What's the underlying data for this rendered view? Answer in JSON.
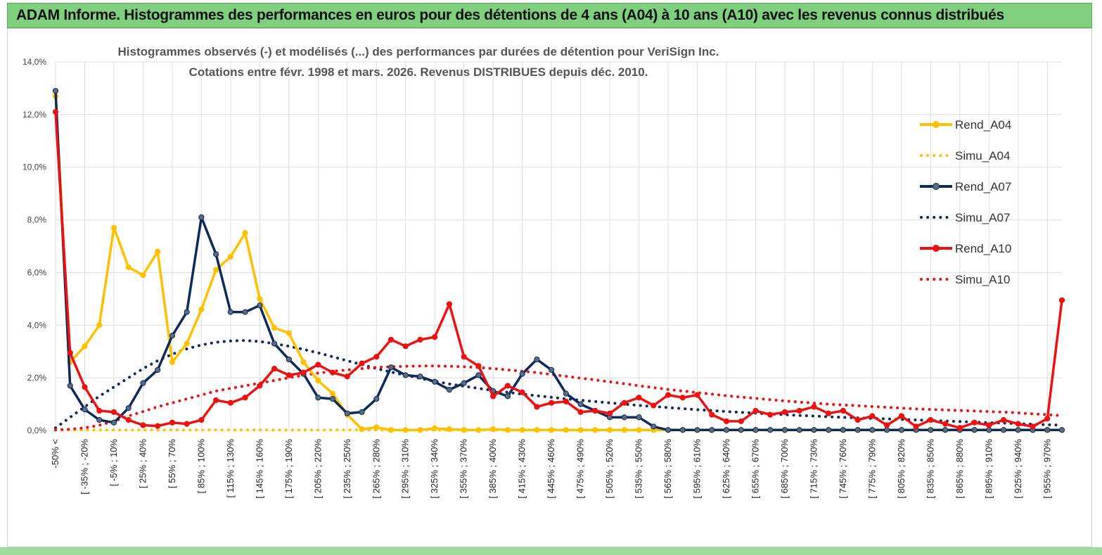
{
  "banner": {
    "title": "ADAM Informe. Histogrammes des performances en euros pour des détentions de 4 ans (A04) à 10 ans (A10) avec les revenus connus distribués"
  },
  "colors": {
    "banner_bg": "#7fcf7f",
    "rend_a04": "#ffc000",
    "rend_a07": "#0e2a5a",
    "rend_a10": "#ee1111",
    "grid": "#dedede"
  },
  "chart_data": {
    "type": "line",
    "title_lines": [
      "Histogrammes observés (-) et modélisés (...) des performances par durées de détention pour VeriSign Inc.",
      "Cotations entre févr. 1998 et mars. 2026. Revenus DISTRIBUES depuis déc. 2010."
    ],
    "ylim": [
      0,
      14
    ],
    "y_unit": "%",
    "y_ticks": [
      "0,0%",
      "2,0%",
      "4,0%",
      "6,0%",
      "8,0%",
      "10,0%",
      "12,0%",
      "14,0%"
    ],
    "category_count": 70,
    "x_tick_labels": [
      "-50% <",
      "[ -35% ; -20%",
      "[ -5% ; 10%",
      "[ 25% ; 40%",
      "[ 55% ; 70%",
      "[ 85% ; 100%",
      "[ 115% ; 130%",
      "[ 145% ; 160%",
      "[ 175% ; 190%",
      "[ 205% ; 220%",
      "[ 235% ; 250%",
      "[ 265% ; 280%",
      "[ 295% ; 310%",
      "[ 325% ; 340%",
      "[ 355% ; 370%",
      "[ 385% ; 400%",
      "[ 415% ; 430%",
      "[ 445% ; 460%",
      "[ 475% ; 490%",
      "[ 505% ; 520%",
      "[ 535% ; 550%",
      "[ 565% ; 580%",
      "[ 595% ; 610%",
      "[ 625% ; 640%",
      "[ 655% ; 670%",
      "[ 685% ; 700%",
      "[ 715% ; 730%",
      "[ 745% ; 760%",
      "[ 775% ; 790%",
      "[ 805% ; 820%",
      "[ 835% ; 850%",
      "[ 865% ; 880%",
      "[ 895% ; 910%",
      "[ 925% ; 940%",
      "[ 955% ; 970%"
    ],
    "legend": [
      "Rend_A04",
      "Simu_A04",
      "Rend_A07",
      "Simu_A07",
      "Rend_A10",
      "Simu_A10"
    ],
    "series": [
      {
        "name": "Rend_A04",
        "style": "solid",
        "color": "#ffc000",
        "values": [
          12.7,
          2.6,
          3.2,
          4.0,
          7.7,
          6.2,
          5.9,
          6.8,
          2.6,
          3.3,
          4.6,
          6.1,
          6.6,
          7.5,
          5.0,
          3.9,
          3.7,
          2.6,
          1.9,
          1.4,
          0.6,
          0.05,
          0.12,
          0.02,
          0.02,
          0.02,
          0.08,
          0.05,
          0.02,
          0.02,
          0.05,
          0.02,
          0.02,
          0.02,
          0.02,
          0.02,
          0.02,
          0.02,
          0.02,
          0.02,
          0.02,
          0.02,
          0.02,
          0.02,
          0.02,
          0.02,
          0.02,
          0.02,
          0.02,
          0.02,
          0.02,
          0.02,
          0.02,
          0.02,
          0.02,
          0.02,
          0.02,
          0.02,
          0.02,
          0.02,
          0.02,
          0.02,
          0.02,
          0.02,
          0.02,
          0.02,
          0.02,
          0.02,
          0.02,
          0.02
        ]
      },
      {
        "name": "Simu_A04",
        "style": "dotted",
        "color": "#ffc000",
        "values": [
          0.02,
          0.02,
          0.02,
          0.02,
          0.02,
          0.02,
          0.02,
          0.02,
          0.02,
          0.02,
          0.02,
          0.02,
          0.02,
          0.02,
          0.02,
          0.02,
          0.02,
          0.02,
          0.02,
          0.02,
          0.02,
          0.02,
          0.02,
          0.02,
          0.02,
          0.02,
          0.02,
          0.02,
          0.02,
          0.02,
          0.02,
          0.02,
          0.02,
          0.02,
          0.02,
          0.02,
          0.02,
          0.02,
          0.02,
          0.02,
          0.02,
          0.02,
          0.02,
          0.02,
          0.02,
          0.02,
          0.02,
          0.02,
          0.02,
          0.02,
          0.02,
          0.02,
          0.02,
          0.02,
          0.02,
          0.02,
          0.02,
          0.02,
          0.02,
          0.02,
          0.02,
          0.02,
          0.02,
          0.02,
          0.02,
          0.02,
          0.02,
          0.02,
          0.02,
          0.02
        ]
      },
      {
        "name": "Rend_A07",
        "style": "solid-markers",
        "color": "#0e2a5a",
        "values": [
          12.9,
          1.7,
          0.8,
          0.4,
          0.3,
          0.85,
          1.8,
          2.3,
          3.6,
          4.5,
          8.1,
          6.7,
          4.5,
          4.5,
          4.75,
          3.3,
          2.7,
          2.15,
          1.25,
          1.2,
          0.65,
          0.7,
          1.2,
          2.4,
          2.1,
          2.05,
          1.85,
          1.55,
          1.8,
          2.1,
          1.5,
          1.3,
          2.15,
          2.7,
          2.3,
          1.4,
          1.0,
          0.75,
          0.5,
          0.5,
          0.5,
          0.15,
          0.02,
          0.02,
          0.02,
          0.02,
          0.02,
          0.02,
          0.02,
          0.02,
          0.02,
          0.02,
          0.02,
          0.02,
          0.02,
          0.02,
          0.02,
          0.02,
          0.02,
          0.02,
          0.02,
          0.02,
          0.02,
          0.02,
          0.02,
          0.02,
          0.02,
          0.02,
          0.02,
          0.02
        ]
      },
      {
        "name": "Simu_A07",
        "style": "dotted",
        "color": "#0e2a5a",
        "values": [
          0.1,
          0.5,
          0.9,
          1.3,
          1.65,
          2.0,
          2.35,
          2.65,
          2.9,
          3.1,
          3.25,
          3.35,
          3.4,
          3.42,
          3.38,
          3.3,
          3.2,
          3.08,
          2.95,
          2.8,
          2.65,
          2.5,
          2.35,
          2.22,
          2.1,
          1.98,
          1.87,
          1.77,
          1.68,
          1.6,
          1.52,
          1.45,
          1.38,
          1.32,
          1.26,
          1.2,
          1.15,
          1.1,
          1.05,
          1.0,
          0.95,
          0.91,
          0.87,
          0.83,
          0.79,
          0.76,
          0.72,
          0.69,
          0.66,
          0.63,
          0.6,
          0.57,
          0.55,
          0.52,
          0.5,
          0.48,
          0.46,
          0.44,
          0.42,
          0.4,
          0.38,
          0.36,
          0.34,
          0.32,
          0.3,
          0.28,
          0.26,
          0.24,
          0.22,
          0.2
        ]
      },
      {
        "name": "Rend_A10",
        "style": "solid",
        "color": "#ee1111",
        "values": [
          12.1,
          2.95,
          1.65,
          0.75,
          0.7,
          0.4,
          0.2,
          0.17,
          0.3,
          0.25,
          0.4,
          1.15,
          1.05,
          1.25,
          1.7,
          2.35,
          2.1,
          2.2,
          2.5,
          2.2,
          2.05,
          2.55,
          2.8,
          3.45,
          3.2,
          3.45,
          3.55,
          4.8,
          2.8,
          2.45,
          1.3,
          1.7,
          1.45,
          0.9,
          1.05,
          1.1,
          0.7,
          0.75,
          0.65,
          1.05,
          1.25,
          0.95,
          1.35,
          1.25,
          1.35,
          0.6,
          0.35,
          0.35,
          0.75,
          0.6,
          0.7,
          0.75,
          0.9,
          0.65,
          0.75,
          0.4,
          0.55,
          0.2,
          0.55,
          0.15,
          0.4,
          0.25,
          0.1,
          0.3,
          0.2,
          0.4,
          0.25,
          0.15,
          0.45,
          4.95
        ]
      },
      {
        "name": "Simu_A10",
        "style": "dotted",
        "color": "#ee1111",
        "values": [
          0.02,
          0.05,
          0.1,
          0.2,
          0.35,
          0.55,
          0.72,
          0.9,
          1.05,
          1.2,
          1.35,
          1.5,
          1.6,
          1.7,
          1.8,
          1.9,
          2.0,
          2.1,
          2.18,
          2.25,
          2.3,
          2.35,
          2.4,
          2.42,
          2.44,
          2.45,
          2.45,
          2.44,
          2.42,
          2.39,
          2.35,
          2.3,
          2.25,
          2.2,
          2.13,
          2.06,
          1.99,
          1.92,
          1.85,
          1.78,
          1.7,
          1.63,
          1.56,
          1.5,
          1.44,
          1.38,
          1.32,
          1.27,
          1.22,
          1.17,
          1.12,
          1.08,
          1.04,
          1.0,
          0.97,
          0.94,
          0.91,
          0.88,
          0.85,
          0.82,
          0.8,
          0.78,
          0.76,
          0.74,
          0.72,
          0.7,
          0.67,
          0.63,
          0.6,
          0.56
        ]
      }
    ]
  }
}
